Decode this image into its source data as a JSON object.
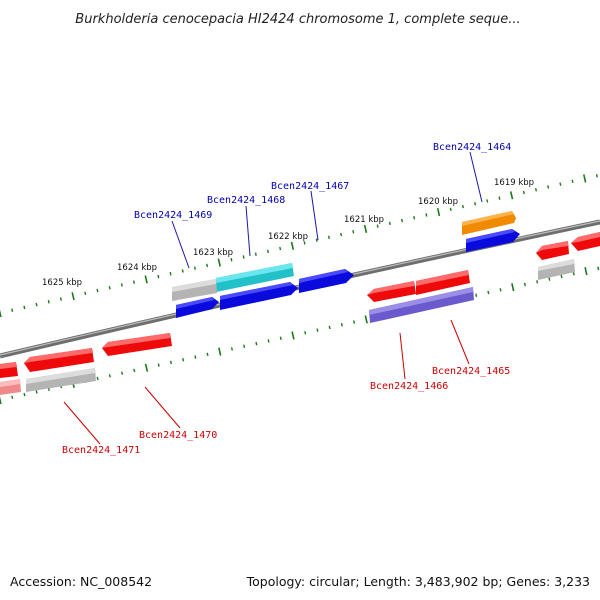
{
  "title": "Burkholderia cenocepacia HI2424 chromosome 1, complete seque...",
  "footer": {
    "accession": "Accession: NC_008542",
    "topology": "Topology: circular; Length: 3,483,902 bp; Genes: 3,233"
  },
  "scale_labels": [
    "1619 kbp",
    "1620 kbp",
    "1621 kbp",
    "1622 kbp",
    "1623 kbp",
    "1624 kbp",
    "1625 kbp"
  ],
  "gene_labels_forward": [
    "Bcen2424_1464",
    "Bcen2424_1467",
    "Bcen2424_1468",
    "Bcen2424_1469"
  ],
  "gene_labels_reverse": [
    "Bcen2424_1465",
    "Bcen2424_1466",
    "Bcen2424_1470",
    "Bcen2424_1471"
  ],
  "colors": {
    "backbone": "#777777",
    "ticks": "#1a7a1a",
    "forward_label": "#0000aa",
    "reverse_label": "#cc0000",
    "blue": "#0a0adc",
    "red": "#ee0a0a",
    "cyan": "#22c0c8",
    "orange": "#f08a00",
    "gray": "#b4b4b4",
    "purple": "#6a5acd"
  }
}
